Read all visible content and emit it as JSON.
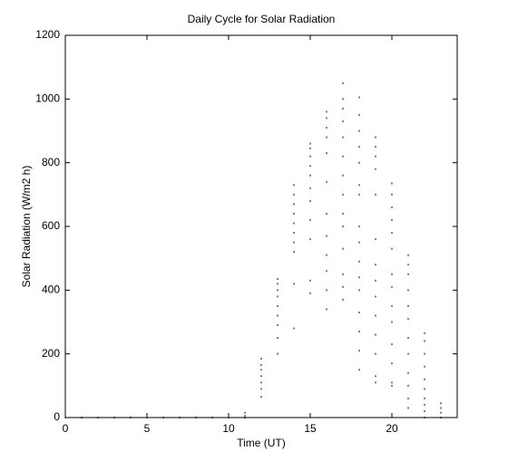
{
  "chart_data": {
    "type": "scatter",
    "title": "Daily Cycle for Solar Radiation",
    "x_label": "Time (UT)",
    "y_label": "Solar Radiation (W/m2 h)",
    "color": "#000000",
    "xlim": [
      0,
      24
    ],
    "ylim": [
      0,
      1200
    ],
    "xticks": [
      0,
      5,
      10,
      15,
      20
    ],
    "yticks": [
      0,
      200,
      400,
      600,
      800,
      1000,
      1200
    ],
    "grid": false,
    "x": [
      0,
      1,
      2,
      3,
      4,
      5,
      6,
      7,
      8,
      9,
      10,
      11,
      11,
      11,
      12,
      12,
      12,
      12,
      12,
      12,
      12,
      13,
      13,
      13,
      13,
      13,
      13,
      13,
      13,
      13,
      14,
      14,
      14,
      14,
      14,
      14,
      14,
      14,
      14,
      14,
      15,
      15,
      15,
      15,
      15,
      15,
      15,
      15,
      15,
      15,
      15,
      16,
      16,
      16,
      16,
      16,
      16,
      16,
      16,
      16,
      16,
      16,
      16,
      17,
      17,
      17,
      17,
      17,
      17,
      17,
      17,
      17,
      17,
      17,
      17,
      17,
      17,
      18,
      18,
      18,
      18,
      18,
      18,
      18,
      18,
      18,
      18,
      18,
      18,
      18,
      18,
      18,
      18,
      19,
      19,
      19,
      19,
      19,
      19,
      19,
      19,
      19,
      19,
      19,
      19,
      19,
      19,
      20,
      20,
      20,
      20,
      20,
      20,
      20,
      20,
      20,
      20,
      20,
      20,
      20,
      20,
      21,
      21,
      21,
      21,
      21,
      21,
      21,
      21,
      21,
      21,
      21,
      21,
      22,
      22,
      22,
      22,
      22,
      22,
      22,
      22,
      22,
      22,
      23,
      23,
      23,
      23
    ],
    "y": [
      0,
      0,
      0,
      0,
      0,
      0,
      0,
      0,
      0,
      0,
      0,
      0,
      5,
      15,
      65,
      90,
      110,
      130,
      150,
      165,
      185,
      200,
      250,
      290,
      320,
      350,
      380,
      400,
      420,
      435,
      280,
      420,
      520,
      550,
      580,
      610,
      640,
      670,
      700,
      730,
      390,
      430,
      560,
      620,
      680,
      720,
      760,
      790,
      820,
      845,
      860,
      340,
      400,
      460,
      510,
      570,
      640,
      740,
      830,
      880,
      910,
      940,
      960,
      370,
      410,
      450,
      530,
      600,
      640,
      700,
      760,
      820,
      880,
      930,
      970,
      1000,
      1050,
      150,
      210,
      270,
      330,
      400,
      440,
      490,
      550,
      600,
      700,
      730,
      800,
      850,
      900,
      950,
      1005,
      110,
      130,
      200,
      260,
      320,
      380,
      430,
      480,
      560,
      700,
      780,
      820,
      850,
      880,
      100,
      110,
      170,
      230,
      300,
      350,
      410,
      450,
      530,
      580,
      620,
      660,
      700,
      735,
      30,
      60,
      100,
      140,
      200,
      250,
      310,
      350,
      400,
      450,
      480,
      510,
      0,
      20,
      40,
      60,
      90,
      120,
      160,
      200,
      240,
      265,
      0,
      15,
      30,
      45
    ]
  }
}
